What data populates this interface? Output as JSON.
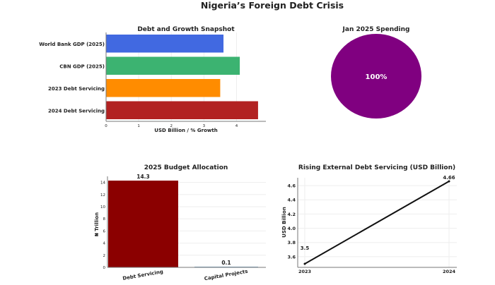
{
  "title": "Nigeria’s Foreign Debt Crisis",
  "chart_data": [
    {
      "type": "bar",
      "orientation": "horizontal",
      "title": "Debt and Growth Snapshot",
      "xlabel": "USD Billion / % Growth",
      "ylabel": "",
      "categories": [
        "World Bank GDP (2025)",
        "CBN GDP (2025)",
        "2023 Debt Servicing",
        "2024 Debt Servicing"
      ],
      "values": [
        3.6,
        4.1,
        3.5,
        4.66
      ],
      "colors": [
        "#4169e1",
        "#3cb371",
        "#ff8c00",
        "#b22222"
      ],
      "xlim": [
        0,
        4.9
      ],
      "xticks": [
        "0",
        "1",
        "2",
        "3",
        "4"
      ],
      "grid": true
    },
    {
      "type": "pie",
      "title": "Jan 2025 Spending",
      "values": [
        100
      ],
      "labels": [
        "100%"
      ],
      "colors": [
        "#800080"
      ]
    },
    {
      "type": "bar",
      "title": "2025 Budget Allocation",
      "xlabel": "",
      "ylabel": "₦ Trillion",
      "categories": [
        "Debt Servicing",
        "Capital Projects"
      ],
      "values": [
        14.3,
        0.1
      ],
      "data_labels": [
        "14.3",
        "0.1"
      ],
      "colors": [
        "#8b0000",
        "#4682b4"
      ],
      "ylim": [
        0,
        15
      ],
      "yticks": [
        "0",
        "2",
        "4",
        "6",
        "8",
        "10",
        "12",
        "14"
      ],
      "grid": true
    },
    {
      "type": "line",
      "title": "Rising External Debt Servicing (USD Billion)",
      "xlabel": "",
      "ylabel": "USD Billion",
      "x": [
        "2023",
        "2024"
      ],
      "values": [
        3.5,
        4.66
      ],
      "data_labels": [
        "3.5",
        "4.66"
      ],
      "color": "#111111",
      "ylim": [
        3.45,
        4.71
      ],
      "yticks": [
        "3.6",
        "3.8",
        "4.0",
        "4.2",
        "4.4",
        "4.6"
      ],
      "grid": true
    }
  ]
}
